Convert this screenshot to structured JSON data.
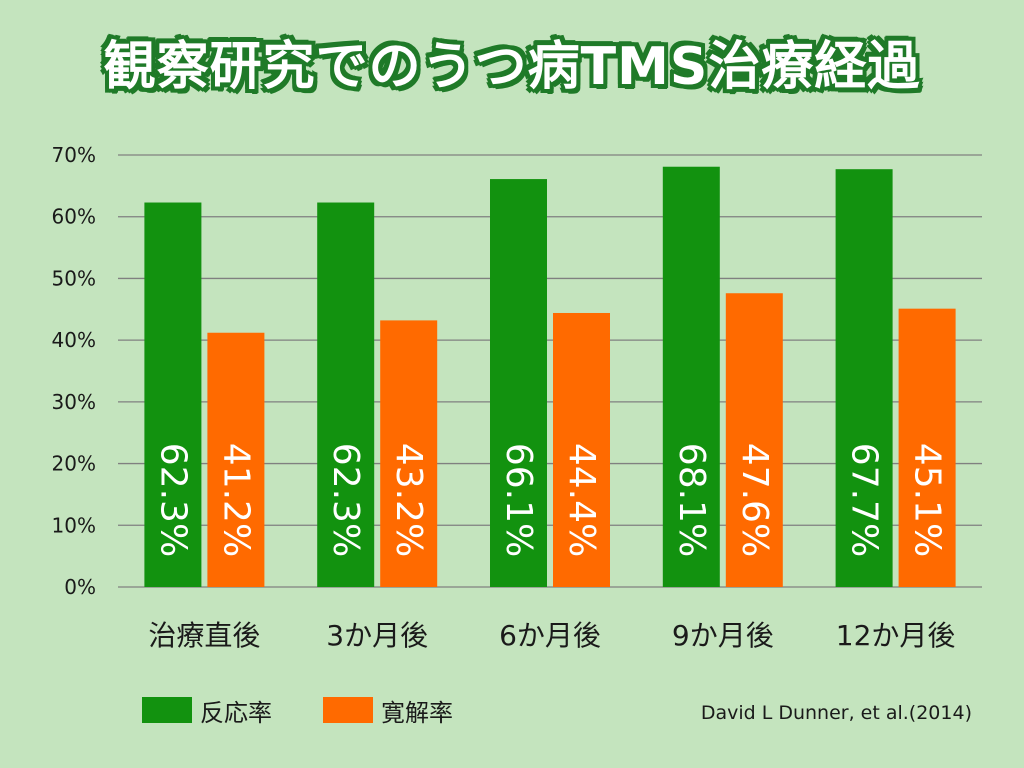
{
  "title": "観察研究でのうつ病TMS治療経過",
  "source": "David L Dunner, et al.(2014)",
  "colors": {
    "background": "#c4e4be",
    "grid": "#808080",
    "response": "#12920f",
    "remission": "#ff6a00",
    "data_label": "#ffffff",
    "title_outline": "#1f7a28"
  },
  "chart_data": {
    "type": "bar",
    "title": "観察研究でのうつ病TMS治療経過",
    "categories": [
      "治療直後",
      "3か月後",
      "6か月後",
      "9か月後",
      "12か月後"
    ],
    "series": [
      {
        "name": "反応率",
        "values": [
          62.3,
          62.3,
          66.1,
          68.1,
          67.7
        ],
        "labels": [
          "62.3%",
          "62.3%",
          "66.1%",
          "68.1%",
          "67.7%"
        ]
      },
      {
        "name": "寛解率",
        "values": [
          41.2,
          43.2,
          44.4,
          47.6,
          45.1
        ],
        "labels": [
          "41.2%",
          "43.2%",
          "44.4%",
          "47.6%",
          "45.1%"
        ]
      }
    ],
    "yticks": [
      "0%",
      "10%",
      "20%",
      "30%",
      "40%",
      "50%",
      "60%",
      "70%"
    ],
    "ylim": [
      0,
      70
    ],
    "grid": true,
    "legend": "bottom-left"
  }
}
